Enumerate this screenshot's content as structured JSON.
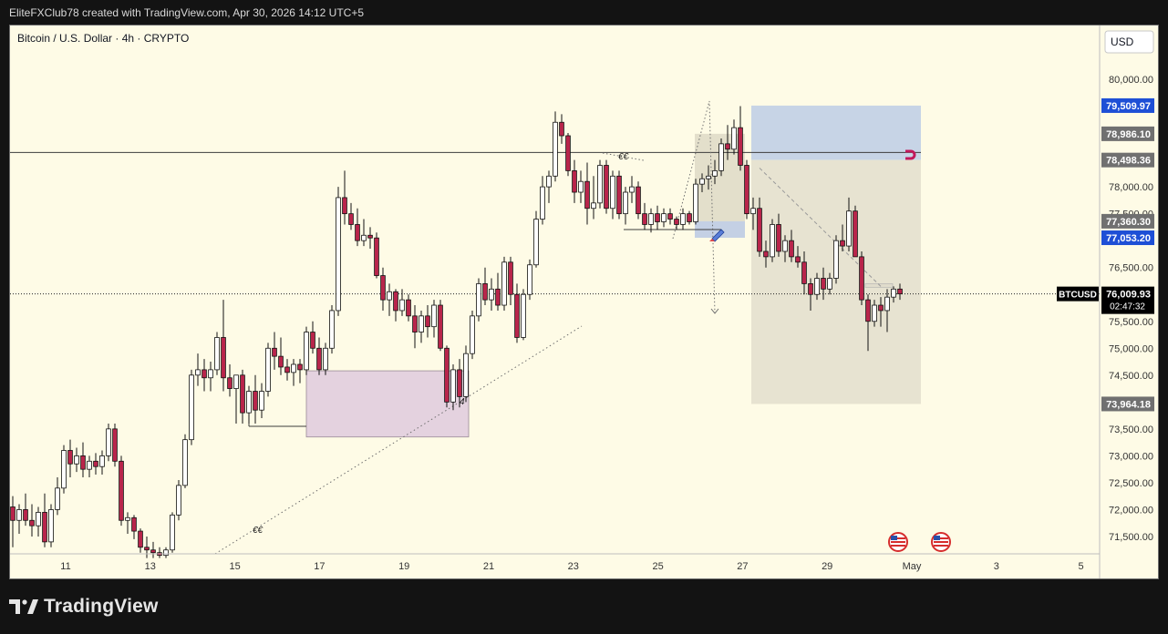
{
  "header": {
    "title": "EliteFXClub78 created with TradingView.com, Apr 30, 2026 14:12 UTC+5"
  },
  "chart_header": {
    "label": "Bitcoin / U.S. Dollar · 4h · CRYPTO",
    "currency_button": "USD"
  },
  "footer": {
    "brand": "TradingView"
  },
  "colors": {
    "up": "#ffffff",
    "down": "#b8254b",
    "bg": "#fefbe6",
    "price_label": "#000000",
    "blue_label": "#1e4fd6",
    "grey_label": "#707070"
  },
  "chart_data": {
    "type": "candlestick",
    "symbol": "BTCUSD",
    "ylim": [
      71100,
      80550
    ],
    "x_ticks": [
      "11",
      "13",
      "15",
      "17",
      "19",
      "21",
      "23",
      "25",
      "27",
      "29",
      "May",
      "3",
      "5"
    ],
    "y_ticks": [
      "80,000.00",
      "78,000.00",
      "77,500.00",
      "76,500.00",
      "75,500.00",
      "75,000.00",
      "74,500.00",
      "73,500.00",
      "73,000.00",
      "72,500.00",
      "72,000.00",
      "71,500.00"
    ],
    "y_tick_values": [
      80000,
      78000,
      77500,
      76500,
      75500,
      75000,
      74500,
      73500,
      73000,
      72500,
      72000,
      71500
    ],
    "price_labels": [
      {
        "text": "79,509.97",
        "value": 79509.97,
        "style": "blue"
      },
      {
        "text": "78,986.10",
        "value": 78986.1,
        "style": "grey"
      },
      {
        "text": "78,498.36",
        "value": 78498.36,
        "style": "grey"
      },
      {
        "text": "77,360.30",
        "value": 77360.3,
        "style": "grey"
      },
      {
        "text": "77,053.20",
        "value": 77053.2,
        "style": "blue"
      },
      {
        "text": "73,964.18",
        "value": 73964.18,
        "style": "grey"
      }
    ],
    "last_price": {
      "symbol": "BTCUSD",
      "price": "76,009.93",
      "countdown": "02:47:32",
      "value": 76009.93
    },
    "horizontal_line": 78640,
    "candles": [
      {
        "o": 72050,
        "h": 72250,
        "l": 71300,
        "c": 71800
      },
      {
        "o": 71800,
        "h": 72100,
        "l": 71550,
        "c": 72000
      },
      {
        "o": 72000,
        "h": 72300,
        "l": 71700,
        "c": 71800
      },
      {
        "o": 71800,
        "h": 72100,
        "l": 71500,
        "c": 71700
      },
      {
        "o": 71700,
        "h": 72050,
        "l": 71500,
        "c": 71950
      },
      {
        "o": 71950,
        "h": 72300,
        "l": 71300,
        "c": 71400
      },
      {
        "o": 71400,
        "h": 72100,
        "l": 71300,
        "c": 72000
      },
      {
        "o": 72000,
        "h": 72600,
        "l": 71900,
        "c": 72400
      },
      {
        "o": 72400,
        "h": 73200,
        "l": 72300,
        "c": 73100
      },
      {
        "o": 73100,
        "h": 73300,
        "l": 72600,
        "c": 72850
      },
      {
        "o": 72850,
        "h": 73150,
        "l": 72700,
        "c": 73000
      },
      {
        "o": 73000,
        "h": 73250,
        "l": 72600,
        "c": 72750
      },
      {
        "o": 72750,
        "h": 73000,
        "l": 72600,
        "c": 72900
      },
      {
        "o": 72900,
        "h": 73050,
        "l": 72650,
        "c": 72800
      },
      {
        "o": 72800,
        "h": 73100,
        "l": 72650,
        "c": 73000
      },
      {
        "o": 73000,
        "h": 73600,
        "l": 72900,
        "c": 73500
      },
      {
        "o": 73500,
        "h": 73600,
        "l": 72800,
        "c": 72900
      },
      {
        "o": 72900,
        "h": 73000,
        "l": 71700,
        "c": 71800
      },
      {
        "o": 71800,
        "h": 71950,
        "l": 71550,
        "c": 71850
      },
      {
        "o": 71850,
        "h": 71900,
        "l": 71450,
        "c": 71600
      },
      {
        "o": 71600,
        "h": 71650,
        "l": 71200,
        "c": 71300
      },
      {
        "o": 71300,
        "h": 71500,
        "l": 71100,
        "c": 71250
      },
      {
        "o": 71250,
        "h": 71400,
        "l": 71100,
        "c": 71200
      },
      {
        "o": 71200,
        "h": 71300,
        "l": 71100,
        "c": 71150
      },
      {
        "o": 71150,
        "h": 71300,
        "l": 71100,
        "c": 71250
      },
      {
        "o": 71250,
        "h": 71950,
        "l": 71200,
        "c": 71900
      },
      {
        "o": 71900,
        "h": 72550,
        "l": 71800,
        "c": 72450
      },
      {
        "o": 72450,
        "h": 73400,
        "l": 72400,
        "c": 73300
      },
      {
        "o": 73300,
        "h": 74600,
        "l": 73200,
        "c": 74500
      },
      {
        "o": 74500,
        "h": 74900,
        "l": 74300,
        "c": 74600
      },
      {
        "o": 74600,
        "h": 74800,
        "l": 74200,
        "c": 74450
      },
      {
        "o": 74450,
        "h": 74750,
        "l": 74200,
        "c": 74600
      },
      {
        "o": 74600,
        "h": 75300,
        "l": 74500,
        "c": 75200
      },
      {
        "o": 75200,
        "h": 75900,
        "l": 74200,
        "c": 74450
      },
      {
        "o": 74450,
        "h": 74700,
        "l": 74100,
        "c": 74250
      },
      {
        "o": 74250,
        "h": 74500,
        "l": 73600,
        "c": 74500
      },
      {
        "o": 74500,
        "h": 74600,
        "l": 73600,
        "c": 73800
      },
      {
        "o": 73800,
        "h": 74300,
        "l": 73600,
        "c": 74200
      },
      {
        "o": 74200,
        "h": 74500,
        "l": 73600,
        "c": 73850
      },
      {
        "o": 73850,
        "h": 74350,
        "l": 73700,
        "c": 74200
      },
      {
        "o": 74200,
        "h": 75100,
        "l": 74100,
        "c": 75000
      },
      {
        "o": 75000,
        "h": 75300,
        "l": 74600,
        "c": 74850
      },
      {
        "o": 74850,
        "h": 75200,
        "l": 74500,
        "c": 74650
      },
      {
        "o": 74650,
        "h": 74800,
        "l": 74400,
        "c": 74550
      },
      {
        "o": 74550,
        "h": 74800,
        "l": 74300,
        "c": 74700
      },
      {
        "o": 74700,
        "h": 74800,
        "l": 74350,
        "c": 74600
      },
      {
        "o": 74600,
        "h": 75400,
        "l": 74500,
        "c": 75300
      },
      {
        "o": 75300,
        "h": 75500,
        "l": 74900,
        "c": 75000
      },
      {
        "o": 75000,
        "h": 75200,
        "l": 74500,
        "c": 74600
      },
      {
        "o": 74600,
        "h": 75100,
        "l": 74500,
        "c": 75000
      },
      {
        "o": 75000,
        "h": 75800,
        "l": 74900,
        "c": 75700
      },
      {
        "o": 75700,
        "h": 78000,
        "l": 75600,
        "c": 77800
      },
      {
        "o": 77800,
        "h": 78300,
        "l": 77300,
        "c": 77500
      },
      {
        "o": 77500,
        "h": 77700,
        "l": 77200,
        "c": 77300
      },
      {
        "o": 77300,
        "h": 77600,
        "l": 76900,
        "c": 77000
      },
      {
        "o": 77000,
        "h": 77400,
        "l": 76900,
        "c": 77100
      },
      {
        "o": 77100,
        "h": 77250,
        "l": 76850,
        "c": 77050
      },
      {
        "o": 77050,
        "h": 77150,
        "l": 76300,
        "c": 76350
      },
      {
        "o": 76350,
        "h": 76500,
        "l": 75700,
        "c": 75900
      },
      {
        "o": 75900,
        "h": 76200,
        "l": 75600,
        "c": 76050
      },
      {
        "o": 76050,
        "h": 76100,
        "l": 75500,
        "c": 75700
      },
      {
        "o": 75700,
        "h": 76100,
        "l": 75600,
        "c": 75900
      },
      {
        "o": 75900,
        "h": 76000,
        "l": 75500,
        "c": 75600
      },
      {
        "o": 75600,
        "h": 75800,
        "l": 75000,
        "c": 75300
      },
      {
        "o": 75300,
        "h": 75700,
        "l": 75100,
        "c": 75600
      },
      {
        "o": 75600,
        "h": 75800,
        "l": 75200,
        "c": 75400
      },
      {
        "o": 75400,
        "h": 75900,
        "l": 75200,
        "c": 75800
      },
      {
        "o": 75800,
        "h": 75900,
        "l": 74950,
        "c": 75000
      },
      {
        "o": 75000,
        "h": 75050,
        "l": 73900,
        "c": 74000
      },
      {
        "o": 74000,
        "h": 74700,
        "l": 73850,
        "c": 74600
      },
      {
        "o": 74600,
        "h": 74800,
        "l": 73900,
        "c": 74100
      },
      {
        "o": 74100,
        "h": 75050,
        "l": 74000,
        "c": 74900
      },
      {
        "o": 74900,
        "h": 75700,
        "l": 74800,
        "c": 75600
      },
      {
        "o": 75600,
        "h": 76300,
        "l": 75500,
        "c": 76200
      },
      {
        "o": 76200,
        "h": 76500,
        "l": 75800,
        "c": 75900
      },
      {
        "o": 75900,
        "h": 76300,
        "l": 75700,
        "c": 76100
      },
      {
        "o": 76100,
        "h": 76400,
        "l": 75700,
        "c": 75800
      },
      {
        "o": 75800,
        "h": 76700,
        "l": 75700,
        "c": 76600
      },
      {
        "o": 76600,
        "h": 76700,
        "l": 75800,
        "c": 76000
      },
      {
        "o": 76000,
        "h": 76200,
        "l": 75100,
        "c": 75200
      },
      {
        "o": 75200,
        "h": 76100,
        "l": 75150,
        "c": 76000
      },
      {
        "o": 76000,
        "h": 76650,
        "l": 75900,
        "c": 76550
      },
      {
        "o": 76550,
        "h": 77550,
        "l": 76500,
        "c": 77400
      },
      {
        "o": 77400,
        "h": 78200,
        "l": 77300,
        "c": 78000
      },
      {
        "o": 78000,
        "h": 78300,
        "l": 77700,
        "c": 78200
      },
      {
        "o": 78200,
        "h": 79400,
        "l": 78100,
        "c": 79200
      },
      {
        "o": 79200,
        "h": 79350,
        "l": 78800,
        "c": 78950
      },
      {
        "o": 78950,
        "h": 79000,
        "l": 78200,
        "c": 78300
      },
      {
        "o": 78300,
        "h": 78500,
        "l": 77700,
        "c": 77900
      },
      {
        "o": 77900,
        "h": 78300,
        "l": 77700,
        "c": 78100
      },
      {
        "o": 78100,
        "h": 78450,
        "l": 77300,
        "c": 77600
      },
      {
        "o": 77600,
        "h": 78200,
        "l": 77400,
        "c": 77700
      },
      {
        "o": 77700,
        "h": 78500,
        "l": 77600,
        "c": 78400
      },
      {
        "o": 78400,
        "h": 78500,
        "l": 77500,
        "c": 77600
      },
      {
        "o": 77600,
        "h": 78300,
        "l": 77400,
        "c": 78200
      },
      {
        "o": 78200,
        "h": 78300,
        "l": 77400,
        "c": 77500
      },
      {
        "o": 77500,
        "h": 78000,
        "l": 77300,
        "c": 77900
      },
      {
        "o": 77900,
        "h": 78200,
        "l": 77700,
        "c": 78000
      },
      {
        "o": 78000,
        "h": 78100,
        "l": 77400,
        "c": 77500
      },
      {
        "o": 77500,
        "h": 77700,
        "l": 77200,
        "c": 77300
      },
      {
        "o": 77300,
        "h": 77600,
        "l": 77150,
        "c": 77500
      },
      {
        "o": 77500,
        "h": 77650,
        "l": 77200,
        "c": 77350
      },
      {
        "o": 77350,
        "h": 77600,
        "l": 77250,
        "c": 77500
      },
      {
        "o": 77500,
        "h": 77600,
        "l": 77300,
        "c": 77400
      },
      {
        "o": 77400,
        "h": 77450,
        "l": 77200,
        "c": 77300
      },
      {
        "o": 77300,
        "h": 77600,
        "l": 77200,
        "c": 77500
      },
      {
        "o": 77500,
        "h": 77550,
        "l": 77300,
        "c": 77350
      },
      {
        "o": 77350,
        "h": 78150,
        "l": 77300,
        "c": 78050
      },
      {
        "o": 78050,
        "h": 78250,
        "l": 77900,
        "c": 78150
      },
      {
        "o": 78150,
        "h": 78400,
        "l": 77950,
        "c": 78200
      },
      {
        "o": 78200,
        "h": 78500,
        "l": 78050,
        "c": 78300
      },
      {
        "o": 78300,
        "h": 78900,
        "l": 78200,
        "c": 78800
      },
      {
        "o": 78800,
        "h": 79150,
        "l": 78500,
        "c": 78700
      },
      {
        "o": 78700,
        "h": 79250,
        "l": 78600,
        "c": 79100
      },
      {
        "o": 79100,
        "h": 79500,
        "l": 78300,
        "c": 78400
      },
      {
        "o": 78400,
        "h": 78500,
        "l": 77400,
        "c": 77500
      },
      {
        "o": 77500,
        "h": 77800,
        "l": 77200,
        "c": 77600
      },
      {
        "o": 77600,
        "h": 77800,
        "l": 76700,
        "c": 76800
      },
      {
        "o": 76800,
        "h": 77000,
        "l": 76500,
        "c": 76700
      },
      {
        "o": 76700,
        "h": 77400,
        "l": 76600,
        "c": 77300
      },
      {
        "o": 77300,
        "h": 77500,
        "l": 76700,
        "c": 76800
      },
      {
        "o": 76800,
        "h": 77100,
        "l": 76600,
        "c": 77000
      },
      {
        "o": 77000,
        "h": 77200,
        "l": 76600,
        "c": 76700
      },
      {
        "o": 76700,
        "h": 76900,
        "l": 76500,
        "c": 76600
      },
      {
        "o": 76600,
        "h": 76800,
        "l": 76000,
        "c": 76200
      },
      {
        "o": 76200,
        "h": 76300,
        "l": 75700,
        "c": 76000
      },
      {
        "o": 76000,
        "h": 76400,
        "l": 75900,
        "c": 76300
      },
      {
        "o": 76300,
        "h": 76500,
        "l": 75900,
        "c": 76100
      },
      {
        "o": 76100,
        "h": 76400,
        "l": 76000,
        "c": 76300
      },
      {
        "o": 76300,
        "h": 77100,
        "l": 76200,
        "c": 77000
      },
      {
        "o": 77000,
        "h": 77300,
        "l": 76800,
        "c": 76900
      },
      {
        "o": 76900,
        "h": 77800,
        "l": 76800,
        "c": 77550
      },
      {
        "o": 77550,
        "h": 77650,
        "l": 76700,
        "c": 76700
      },
      {
        "o": 76700,
        "h": 76800,
        "l": 75800,
        "c": 75900
      },
      {
        "o": 75900,
        "h": 76000,
        "l": 74950,
        "c": 75500
      },
      {
        "o": 75500,
        "h": 75900,
        "l": 75400,
        "c": 75800
      },
      {
        "o": 75800,
        "h": 75950,
        "l": 75400,
        "c": 75700
      },
      {
        "o": 75700,
        "h": 76100,
        "l": 75300,
        "c": 75950
      },
      {
        "o": 75950,
        "h": 76150,
        "l": 75850,
        "c": 76100
      },
      {
        "o": 76100,
        "h": 76200,
        "l": 75900,
        "c": 76010
      }
    ]
  }
}
